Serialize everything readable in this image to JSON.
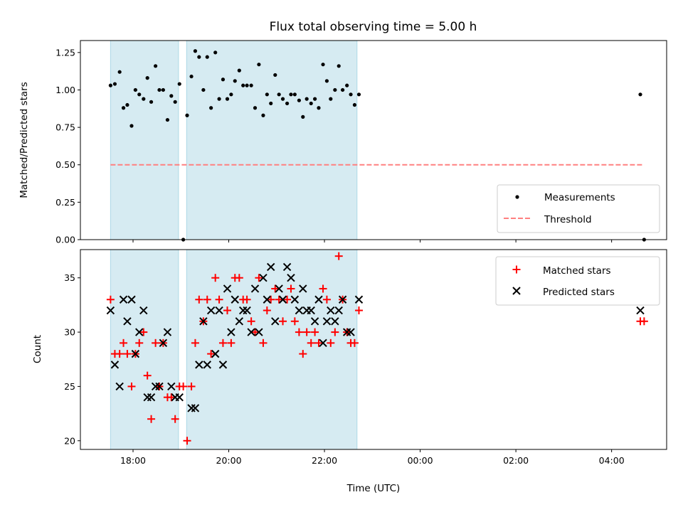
{
  "chart_data": {
    "title": "Flux total observing time = 5.00 h",
    "xlabel": "Time (UTC)",
    "x_tick_labels": [
      "18:00",
      "20:00",
      "22:00",
      "00:00",
      "02:00",
      "04:00"
    ],
    "x_tick_hours": [
      18,
      20,
      22,
      24,
      26,
      28
    ],
    "xlim_hours": [
      16.9,
      29.15
    ],
    "shaded_intervals_hours": [
      [
        17.53,
        18.95
      ],
      [
        19.12,
        22.68
      ]
    ],
    "shade_color": "#add8e6",
    "panels": [
      {
        "type": "scatter",
        "ylabel": "Matched/Predicted stars",
        "ylim": [
          0,
          1.33
        ],
        "y_ticks": [
          "0.00",
          "0.25",
          "0.50",
          "0.75",
          "1.00",
          "1.25"
        ],
        "threshold": {
          "name": "Threshold",
          "value": 0.5,
          "x_range_hours": [
            17.53,
            28.68
          ],
          "color": "#ff8080"
        },
        "legend": {
          "loc": "lower right",
          "entries": [
            "Measurements",
            "Threshold"
          ]
        },
        "series": [
          {
            "name": "Measurements",
            "color": "#000000",
            "marker": "dot",
            "points": [
              [
                17.53,
                1.03
              ],
              [
                17.62,
                1.04
              ],
              [
                17.72,
                1.12
              ],
              [
                17.8,
                0.88
              ],
              [
                17.88,
                0.9
              ],
              [
                17.97,
                0.76
              ],
              [
                18.05,
                1.0
              ],
              [
                18.13,
                0.97
              ],
              [
                18.22,
                0.94
              ],
              [
                18.3,
                1.08
              ],
              [
                18.38,
                0.92
              ],
              [
                18.47,
                1.16
              ],
              [
                18.55,
                1.0
              ],
              [
                18.63,
                1.0
              ],
              [
                18.72,
                0.8
              ],
              [
                18.8,
                0.96
              ],
              [
                18.88,
                0.92
              ],
              [
                18.97,
                1.04
              ],
              [
                19.05,
                0.0
              ],
              [
                19.13,
                0.83
              ],
              [
                19.22,
                1.09
              ],
              [
                19.3,
                1.26
              ],
              [
                19.38,
                1.22
              ],
              [
                19.47,
                1.0
              ],
              [
                19.55,
                1.22
              ],
              [
                19.63,
                0.88
              ],
              [
                19.72,
                1.25
              ],
              [
                19.8,
                0.94
              ],
              [
                19.88,
                1.07
              ],
              [
                19.97,
                0.94
              ],
              [
                20.05,
                0.97
              ],
              [
                20.13,
                1.06
              ],
              [
                20.22,
                1.13
              ],
              [
                20.3,
                1.03
              ],
              [
                20.38,
                1.03
              ],
              [
                20.47,
                1.03
              ],
              [
                20.55,
                0.88
              ],
              [
                20.63,
                1.17
              ],
              [
                20.72,
                0.83
              ],
              [
                20.8,
                0.97
              ],
              [
                20.88,
                0.91
              ],
              [
                20.97,
                1.1
              ],
              [
                21.05,
                0.97
              ],
              [
                21.13,
                0.94
              ],
              [
                21.22,
                0.91
              ],
              [
                21.3,
                0.97
              ],
              [
                21.38,
                0.97
              ],
              [
                21.47,
                0.93
              ],
              [
                21.55,
                0.82
              ],
              [
                21.63,
                0.94
              ],
              [
                21.72,
                0.91
              ],
              [
                21.8,
                0.94
              ],
              [
                21.88,
                0.88
              ],
              [
                21.97,
                1.17
              ],
              [
                22.05,
                1.06
              ],
              [
                22.13,
                0.94
              ],
              [
                22.22,
                1.0
              ],
              [
                22.3,
                1.16
              ],
              [
                22.38,
                1.0
              ],
              [
                22.47,
                1.03
              ],
              [
                22.55,
                0.97
              ],
              [
                22.63,
                0.9
              ],
              [
                22.72,
                0.97
              ],
              [
                28.6,
                0.97
              ],
              [
                28.68,
                0.0
              ]
            ]
          }
        ]
      },
      {
        "type": "scatter",
        "ylabel": "Count",
        "ylim": [
          19.2,
          37.6
        ],
        "y_ticks": [
          "20",
          "25",
          "30",
          "35"
        ],
        "legend": {
          "loc": "upper right",
          "entries": [
            "Matched stars",
            "Predicted stars"
          ]
        },
        "series": [
          {
            "name": "Matched stars",
            "color": "#ff0000",
            "marker": "plus",
            "points": [
              [
                17.53,
                33
              ],
              [
                17.62,
                28
              ],
              [
                17.72,
                28
              ],
              [
                17.8,
                29
              ],
              [
                17.88,
                28
              ],
              [
                17.97,
                25
              ],
              [
                18.05,
                28
              ],
              [
                18.13,
                29
              ],
              [
                18.22,
                30
              ],
              [
                18.3,
                26
              ],
              [
                18.38,
                22
              ],
              [
                18.47,
                29
              ],
              [
                18.55,
                25
              ],
              [
                18.63,
                29
              ],
              [
                18.72,
                24
              ],
              [
                18.8,
                24
              ],
              [
                18.88,
                22
              ],
              [
                18.97,
                25
              ],
              [
                19.05,
                25
              ],
              [
                19.13,
                20
              ],
              [
                19.22,
                25
              ],
              [
                19.3,
                29
              ],
              [
                19.38,
                33
              ],
              [
                19.47,
                31
              ],
              [
                19.55,
                33
              ],
              [
                19.63,
                28
              ],
              [
                19.72,
                35
              ],
              [
                19.8,
                33
              ],
              [
                19.88,
                29
              ],
              [
                19.97,
                32
              ],
              [
                20.05,
                29
              ],
              [
                20.13,
                35
              ],
              [
                20.22,
                35
              ],
              [
                20.3,
                33
              ],
              [
                20.38,
                33
              ],
              [
                20.47,
                31
              ],
              [
                20.55,
                30
              ],
              [
                20.63,
                35
              ],
              [
                20.72,
                29
              ],
              [
                20.8,
                32
              ],
              [
                20.88,
                33
              ],
              [
                20.97,
                34
              ],
              [
                21.05,
                33
              ],
              [
                21.13,
                31
              ],
              [
                21.22,
                33
              ],
              [
                21.3,
                34
              ],
              [
                21.38,
                31
              ],
              [
                21.47,
                30
              ],
              [
                21.55,
                28
              ],
              [
                21.63,
                30
              ],
              [
                21.72,
                29
              ],
              [
                21.8,
                30
              ],
              [
                21.88,
                29
              ],
              [
                21.97,
                34
              ],
              [
                22.05,
                33
              ],
              [
                22.13,
                29
              ],
              [
                22.22,
                30
              ],
              [
                22.3,
                37
              ],
              [
                22.38,
                33
              ],
              [
                22.47,
                30
              ],
              [
                22.55,
                29
              ],
              [
                22.63,
                29
              ],
              [
                22.72,
                32
              ],
              [
                28.6,
                31
              ],
              [
                28.68,
                31
              ]
            ]
          },
          {
            "name": "Predicted stars",
            "color": "#000000",
            "marker": "x",
            "points": [
              [
                17.53,
                32
              ],
              [
                17.62,
                27
              ],
              [
                17.72,
                25
              ],
              [
                17.8,
                33
              ],
              [
                17.88,
                31
              ],
              [
                17.97,
                33
              ],
              [
                18.05,
                28
              ],
              [
                18.13,
                30
              ],
              [
                18.22,
                32
              ],
              [
                18.3,
                24
              ],
              [
                18.38,
                24
              ],
              [
                18.47,
                25
              ],
              [
                18.55,
                25
              ],
              [
                18.63,
                29
              ],
              [
                18.72,
                30
              ],
              [
                18.8,
                25
              ],
              [
                18.88,
                24
              ],
              [
                18.97,
                24
              ],
              [
                19.22,
                23
              ],
              [
                19.3,
                23
              ],
              [
                19.38,
                27
              ],
              [
                19.47,
                31
              ],
              [
                19.55,
                27
              ],
              [
                19.63,
                32
              ],
              [
                19.72,
                28
              ],
              [
                19.8,
                32
              ],
              [
                19.88,
                27
              ],
              [
                19.97,
                34
              ],
              [
                20.05,
                30
              ],
              [
                20.13,
                33
              ],
              [
                20.22,
                31
              ],
              [
                20.3,
                32
              ],
              [
                20.38,
                32
              ],
              [
                20.47,
                30
              ],
              [
                20.55,
                34
              ],
              [
                20.63,
                30
              ],
              [
                20.72,
                35
              ],
              [
                20.8,
                33
              ],
              [
                20.88,
                36
              ],
              [
                20.97,
                31
              ],
              [
                21.05,
                34
              ],
              [
                21.13,
                33
              ],
              [
                21.22,
                36
              ],
              [
                21.3,
                35
              ],
              [
                21.38,
                33
              ],
              [
                21.47,
                32
              ],
              [
                21.55,
                34
              ],
              [
                21.63,
                32
              ],
              [
                21.72,
                32
              ],
              [
                21.8,
                31
              ],
              [
                21.88,
                33
              ],
              [
                21.97,
                29
              ],
              [
                22.05,
                31
              ],
              [
                22.13,
                32
              ],
              [
                22.22,
                31
              ],
              [
                22.3,
                32
              ],
              [
                22.38,
                33
              ],
              [
                22.47,
                30
              ],
              [
                22.55,
                30
              ],
              [
                22.72,
                33
              ],
              [
                28.6,
                32
              ]
            ]
          }
        ]
      }
    ]
  }
}
